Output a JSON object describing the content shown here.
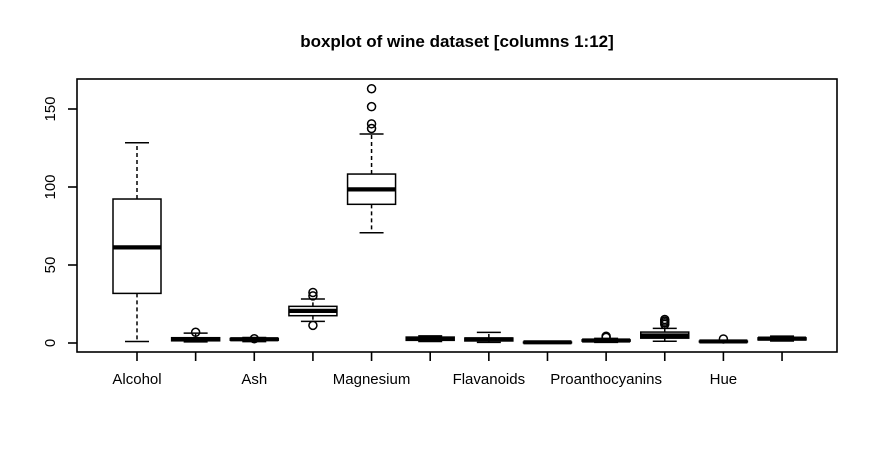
{
  "chart_data": {
    "type": "boxplot",
    "title": "boxplot of wine dataset [columns 1:12]",
    "background_color": "#ffffff",
    "line_color": "#000000",
    "box_fill_color": "#ffffff",
    "grid": false,
    "legend": "none",
    "ylim": [
      0,
      150
    ],
    "yticks": [
      0,
      50,
      100,
      150
    ],
    "x_axis_labels_visible": [
      "Alcohol",
      "Ash",
      "Magnesium",
      "Flavanoids",
      "Proanthocyanins",
      "Hue"
    ],
    "boxes": [
      {
        "label": "Alcohol",
        "low": 1.0,
        "q1": 31.8,
        "median": 61.3,
        "q3": 92.3,
        "high": 128.4,
        "outliers": []
      },
      {
        "label": "",
        "low": 0.7,
        "q1": 1.4,
        "median": 2.4,
        "q3": 3.4,
        "high": 6.3,
        "outliers": [
          6.9
        ]
      },
      {
        "label": "Ash",
        "low": 0.9,
        "q1": 1.8,
        "median": 2.4,
        "q3": 2.9,
        "high": 3.5,
        "outliers": [
          2.7
        ]
      },
      {
        "label": "",
        "low": 13.9,
        "q1": 17.5,
        "median": 20.6,
        "q3": 23.5,
        "high": 28.2,
        "outliers": [
          11.3,
          30.2,
          32.4
        ]
      },
      {
        "label": "Magnesium",
        "low": 70.7,
        "q1": 88.9,
        "median": 98.5,
        "q3": 108.3,
        "high": 134.0,
        "outliers": [
          137.5,
          140.5,
          151.5,
          163.0
        ]
      },
      {
        "label": "",
        "low": 1.0,
        "q1": 1.7,
        "median": 2.7,
        "q3": 3.8,
        "high": 4.6,
        "outliers": []
      },
      {
        "label": "Flavanoids",
        "low": 0.4,
        "q1": 1.3,
        "median": 2.3,
        "q3": 3.2,
        "high": 6.8,
        "outliers": []
      },
      {
        "label": "",
        "low": 0.2,
        "q1": 0.3,
        "median": 0.45,
        "q3": 0.6,
        "high": 0.8,
        "outliers": []
      },
      {
        "label": "Proanthocyanins",
        "low": 0.4,
        "q1": 1.2,
        "median": 1.6,
        "q3": 2.0,
        "high": 3.0,
        "outliers": [
          3.6,
          4.3
        ]
      },
      {
        "label": "",
        "low": 1.1,
        "q1": 3.1,
        "median": 4.8,
        "q3": 7.0,
        "high": 9.4,
        "outliers": [
          11.9,
          13.0,
          14.0,
          15.1
        ]
      },
      {
        "label": "Hue",
        "low": 0.5,
        "q1": 0.8,
        "median": 1.0,
        "q3": 1.2,
        "high": 1.7,
        "outliers": [
          2.6
        ]
      },
      {
        "label": "",
        "low": 1.3,
        "q1": 2.0,
        "median": 2.8,
        "q3": 3.3,
        "high": 4.4,
        "outliers": []
      }
    ]
  }
}
